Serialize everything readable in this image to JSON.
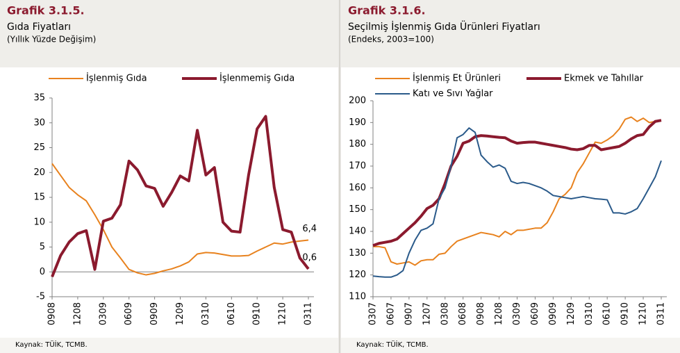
{
  "chart_data": [
    {
      "type": "line",
      "label": "Grafik 3.1.5.",
      "title": "Gıda Fiyatları",
      "subtitle": "(Yıllık Yüzde Değişim)",
      "source": "Kaynak: TÜİK, TCMB.",
      "categories": [
        "0908",
        null,
        null,
        "1208",
        null,
        null,
        "0309",
        null,
        null,
        "0609",
        null,
        null,
        "0909",
        null,
        null,
        "1209",
        null,
        null,
        "0310",
        null,
        null,
        "0610",
        null,
        null,
        "0910",
        null,
        null,
        "1210",
        null,
        null,
        "0311"
      ],
      "series": [
        {
          "name": "İşlenmiş Gıda",
          "color": "#e8821e",
          "line_width": 2,
          "values": [
            21.8,
            19.4,
            17,
            15.5,
            14.3,
            11.5,
            8.5,
            5,
            2.8,
            0.5,
            -0.2,
            -0.6,
            -0.3,
            0.2,
            0.6,
            1.2,
            2,
            3.6,
            3.9,
            3.8,
            3.5,
            3.2,
            3.2,
            3.3,
            4.2,
            5,
            5.8,
            5.6,
            6,
            6.2,
            6.4
          ],
          "value_labels": [
            null,
            null,
            null,
            null,
            null,
            null,
            null,
            null,
            null,
            null,
            null,
            null,
            null,
            null,
            null,
            null,
            null,
            null,
            null,
            null,
            null,
            null,
            null,
            null,
            null,
            null,
            null,
            null,
            null,
            null,
            "6,4"
          ]
        },
        {
          "name": "İşlenmemiş Gıda",
          "color": "#8b1a2e",
          "line_width": 4,
          "values": [
            -1,
            3.3,
            6,
            7.7,
            8.3,
            0.5,
            10.2,
            10.8,
            13.5,
            22.3,
            20.5,
            17.3,
            16.8,
            13.2,
            16,
            19.3,
            18.3,
            28.5,
            19.5,
            21,
            10,
            8.2,
            8,
            19.5,
            28.8,
            31.3,
            17,
            8.5,
            8,
            2.8,
            0.6
          ],
          "value_labels": [
            null,
            null,
            null,
            null,
            null,
            null,
            null,
            null,
            null,
            null,
            null,
            null,
            null,
            null,
            null,
            null,
            null,
            null,
            null,
            null,
            null,
            null,
            null,
            null,
            null,
            null,
            null,
            null,
            null,
            null,
            "0,6"
          ]
        }
      ],
      "ylim": [
        -5,
        35
      ],
      "yticks": [
        -5,
        0,
        5,
        10,
        15,
        20,
        25,
        30,
        35
      ]
    },
    {
      "type": "line",
      "label": "Grafik 3.1.6.",
      "title": "Seçilmiş İşlenmiş Gıda Ürünleri Fiyatları",
      "subtitle": "(Endeks, 2003=100)",
      "source": "Kaynak: TÜİK, TCMB.",
      "categories": [
        "0307",
        null,
        null,
        "0607",
        null,
        null,
        "0907",
        null,
        null,
        "1207",
        null,
        null,
        "0308",
        null,
        null,
        "0608",
        null,
        null,
        "0908",
        null,
        null,
        "1208",
        null,
        null,
        "0309",
        null,
        null,
        "0609",
        null,
        null,
        "0909",
        null,
        null,
        "1209",
        null,
        null,
        "0310",
        null,
        null,
        "0610",
        null,
        null,
        "0910",
        null,
        null,
        "1210",
        null,
        null,
        "0311"
      ],
      "series": [
        {
          "name": "İşlenmiş Et Ürünleri",
          "color": "#e8821e",
          "line_width": 2,
          "values": [
            133,
            133,
            132.5,
            126,
            125,
            125.5,
            126,
            124.5,
            126.5,
            127,
            127,
            129.5,
            130,
            133,
            135.5,
            136.5,
            137.5,
            138.5,
            139.5,
            139,
            138.5,
            137.5,
            140,
            138.5,
            140.5,
            140.5,
            141,
            141.5,
            141.5,
            144,
            149,
            155,
            157,
            160,
            167,
            171,
            176,
            181,
            180.5,
            182,
            184,
            187,
            191.5,
            192.5,
            190.5,
            192,
            190,
            190.5,
            191
          ]
        },
        {
          "name": "Ekmek ve Tahıllar",
          "color": "#8b1a2e",
          "line_width": 4,
          "values": [
            133.5,
            134.5,
            135,
            135.5,
            136.5,
            139,
            141.5,
            144,
            147,
            150.5,
            152,
            155,
            162,
            170,
            174.5,
            180.5,
            181.5,
            183.5,
            184,
            183.8,
            183.5,
            183.2,
            183,
            181.5,
            180.5,
            180.8,
            181,
            181,
            180.5,
            180,
            179.5,
            179,
            178.5,
            177.8,
            177.5,
            178,
            179.5,
            179.5,
            177.5,
            178,
            178.5,
            179,
            180.5,
            182.5,
            184,
            184.5,
            188,
            190.5,
            191
          ]
        },
        {
          "name": "Katı ve Sıvı Yağlar",
          "color": "#2a5a8a",
          "line_width": 2,
          "values": [
            119.5,
            119.2,
            119,
            119,
            120,
            122,
            130,
            136,
            140.5,
            141.5,
            143.5,
            155,
            160,
            170,
            183,
            184.5,
            187.5,
            185.5,
            175,
            172,
            169.5,
            170.5,
            169,
            163,
            162,
            162.5,
            162,
            161,
            160,
            158.5,
            156.5,
            156,
            155.5,
            155,
            155.5,
            156,
            155.5,
            155,
            154.8,
            154.5,
            148.5,
            148.5,
            148,
            149,
            150.5,
            155,
            160,
            165,
            172.5
          ]
        }
      ],
      "ylim": [
        110,
        200
      ],
      "yticks": [
        110,
        120,
        130,
        140,
        150,
        160,
        170,
        180,
        190,
        200
      ]
    }
  ]
}
